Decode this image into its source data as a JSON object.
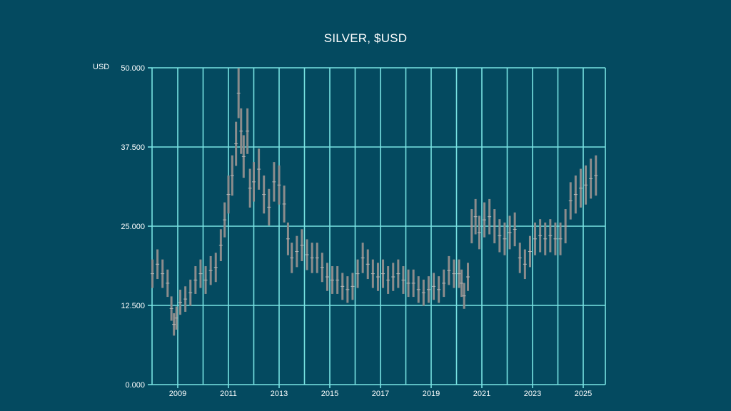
{
  "colors": {
    "background": "#044a60",
    "grid": "#79e3e3",
    "bar": "#8c8c8c",
    "text": "#ffffff"
  },
  "chart_data": {
    "type": "bar",
    "title": "SILVER, $USD",
    "ylabel": "USD",
    "xlabel": "",
    "ylim": [
      0,
      50
    ],
    "xlim": [
      2008.0,
      2025.6
    ],
    "yticks": [
      0,
      12.5,
      25,
      37.5,
      50
    ],
    "ytick_labels": [
      "0.000",
      "12.500",
      "25.000",
      "37.500",
      "50.000"
    ],
    "xticks": [
      2009,
      2011,
      2013,
      2015,
      2017,
      2019,
      2021,
      2023,
      2025
    ],
    "xtick_labels": [
      "2009",
      "2011",
      "2013",
      "2015",
      "2017",
      "2019",
      "2021",
      "2023",
      "2025"
    ],
    "grid": true,
    "legend": "none",
    "series": [
      {
        "x": [
          2008.0,
          2008.2,
          2008.4,
          2008.6,
          2008.75,
          2008.85,
          2008.95,
          2009.1,
          2009.3,
          2009.5,
          2009.7,
          2009.9,
          2010.1,
          2010.3,
          2010.5,
          2010.7,
          2010.85,
          2011.0,
          2011.15,
          2011.3,
          2011.4,
          2011.5,
          2011.6,
          2011.75,
          2011.85,
          2012.0,
          2012.2,
          2012.4,
          2012.6,
          2012.8,
          2013.0,
          2013.2,
          2013.35,
          2013.5,
          2013.7,
          2013.9,
          2014.1,
          2014.3,
          2014.5,
          2014.7,
          2014.9,
          2015.1,
          2015.3,
          2015.5,
          2015.7,
          2015.9,
          2016.1,
          2016.3,
          2016.5,
          2016.7,
          2016.9,
          2017.1,
          2017.3,
          2017.5,
          2017.7,
          2017.9,
          2018.1,
          2018.3,
          2018.5,
          2018.7,
          2018.9,
          2019.1,
          2019.3,
          2019.5,
          2019.7,
          2019.9,
          2020.1,
          2020.2,
          2020.3,
          2020.45,
          2020.6,
          2020.75,
          2020.9,
          2021.1,
          2021.3,
          2021.5,
          2021.7,
          2021.9,
          2022.1,
          2022.3,
          2022.5,
          2022.7,
          2022.9,
          2023.1,
          2023.3,
          2023.5,
          2023.7,
          2023.9,
          2024.1,
          2024.3,
          2024.5,
          2024.7,
          2024.9,
          2025.1,
          2025.3,
          2025.5
        ],
        "values": [
          17.5,
          19.0,
          17.5,
          16.0,
          12.0,
          9.5,
          10.5,
          13.0,
          13.5,
          14.5,
          16.5,
          17.5,
          16.5,
          18.0,
          18.5,
          22.0,
          26.0,
          30.0,
          33.0,
          38.0,
          46.0,
          40.0,
          36.0,
          40.0,
          31.0,
          32.0,
          34.0,
          30.0,
          28.0,
          32.0,
          31.5,
          28.5,
          23.0,
          20.0,
          21.0,
          22.0,
          20.5,
          20.0,
          20.0,
          18.5,
          17.0,
          16.5,
          16.5,
          15.5,
          15.0,
          15.5,
          17.5,
          20.0,
          19.0,
          17.5,
          17.0,
          17.5,
          16.5,
          17.0,
          17.5,
          16.5,
          16.0,
          16.0,
          15.0,
          14.5,
          15.0,
          15.5,
          15.0,
          16.0,
          18.0,
          17.5,
          17.5,
          16.0,
          14.0,
          17.0,
          25.0,
          26.5,
          24.0,
          26.0,
          26.5,
          25.0,
          23.5,
          23.0,
          24.0,
          24.5,
          20.0,
          19.0,
          21.0,
          23.0,
          23.5,
          23.0,
          23.5,
          23.0,
          23.0,
          25.0,
          29.0,
          30.0,
          31.0,
          31.5,
          32.5,
          33.0
        ]
      }
    ]
  }
}
